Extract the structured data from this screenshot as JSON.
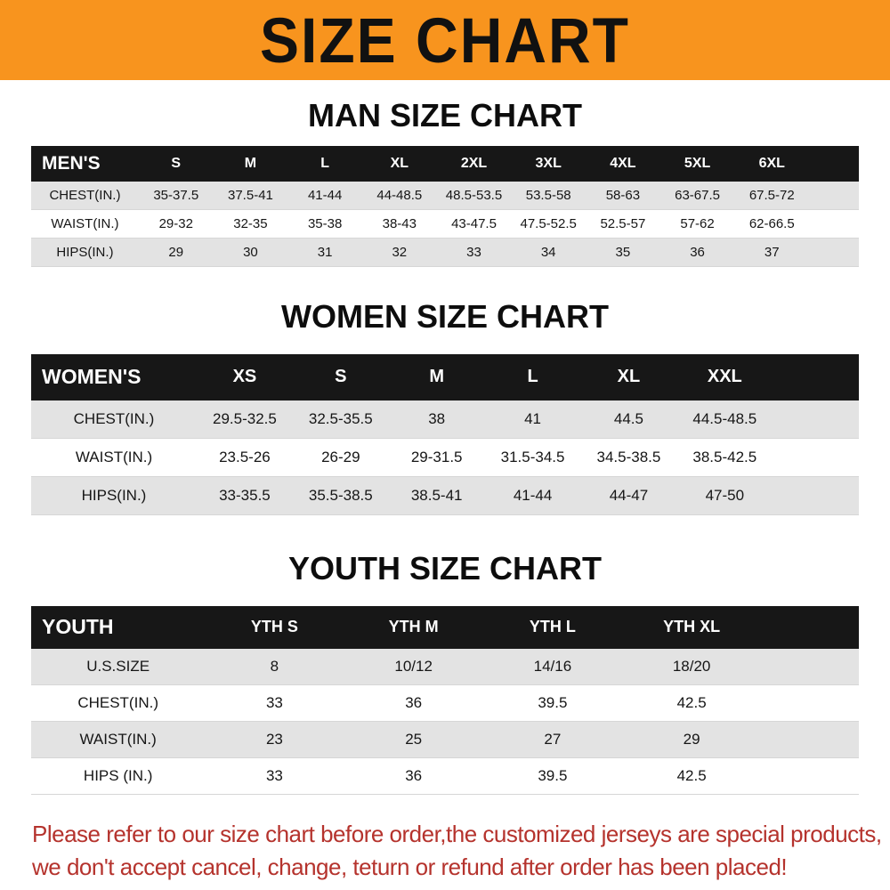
{
  "banner": {
    "title": "SIZE CHART",
    "bg_color": "#f8941e"
  },
  "men": {
    "heading": "MAN SIZE CHART",
    "corner": "MEN'S",
    "columns": [
      "S",
      "M",
      "L",
      "XL",
      "2XL",
      "3XL",
      "4XL",
      "5XL",
      "6XL"
    ],
    "rows": [
      {
        "label": "CHEST(IN.)",
        "values": [
          "35-37.5",
          "37.5-41",
          "41-44",
          "44-48.5",
          "48.5-53.5",
          "53.5-58",
          "58-63",
          "63-67.5",
          "67.5-72"
        ]
      },
      {
        "label": "WAIST(IN.)",
        "values": [
          "29-32",
          "32-35",
          "35-38",
          "38-43",
          "43-47.5",
          "47.5-52.5",
          "52.5-57",
          "57-62",
          "62-66.5"
        ]
      },
      {
        "label": "HIPS(IN.)",
        "values": [
          "29",
          "30",
          "31",
          "32",
          "33",
          "34",
          "35",
          "36",
          "37"
        ]
      }
    ]
  },
  "women": {
    "heading": "WOMEN SIZE CHART",
    "corner": "WOMEN'S",
    "columns": [
      "XS",
      "S",
      "M",
      "L",
      "XL",
      "XXL"
    ],
    "rows": [
      {
        "label": "CHEST(IN.)",
        "values": [
          "29.5-32.5",
          "32.5-35.5",
          "38",
          "41",
          "44.5",
          "44.5-48.5"
        ]
      },
      {
        "label": "WAIST(IN.)",
        "values": [
          "23.5-26",
          "26-29",
          "29-31.5",
          "31.5-34.5",
          "34.5-38.5",
          "38.5-42.5"
        ]
      },
      {
        "label": "HIPS(IN.)",
        "values": [
          "33-35.5",
          "35.5-38.5",
          "38.5-41",
          "41-44",
          "44-47",
          "47-50"
        ]
      }
    ]
  },
  "youth": {
    "heading": "YOUTH SIZE CHART",
    "corner": "YOUTH",
    "columns": [
      "YTH S",
      "YTH M",
      "YTH L",
      "YTH XL"
    ],
    "rows": [
      {
        "label": "U.S.SIZE",
        "values": [
          "8",
          "10/12",
          "14/16",
          "18/20"
        ]
      },
      {
        "label": "CHEST(IN.)",
        "values": [
          "33",
          "36",
          "39.5",
          "42.5"
        ]
      },
      {
        "label": "WAIST(IN.)",
        "values": [
          "23",
          "25",
          "27",
          "29"
        ]
      },
      {
        "label": "HIPS (IN.)",
        "values": [
          "33",
          "36",
          "39.5",
          "42.5"
        ]
      }
    ]
  },
  "footer": {
    "line1": "Please refer to our size chart before order,the customized jerseys are special products,",
    "line2": "we don't accept cancel, change, teturn or refund after order has been placed!",
    "color": "#b5332d"
  }
}
